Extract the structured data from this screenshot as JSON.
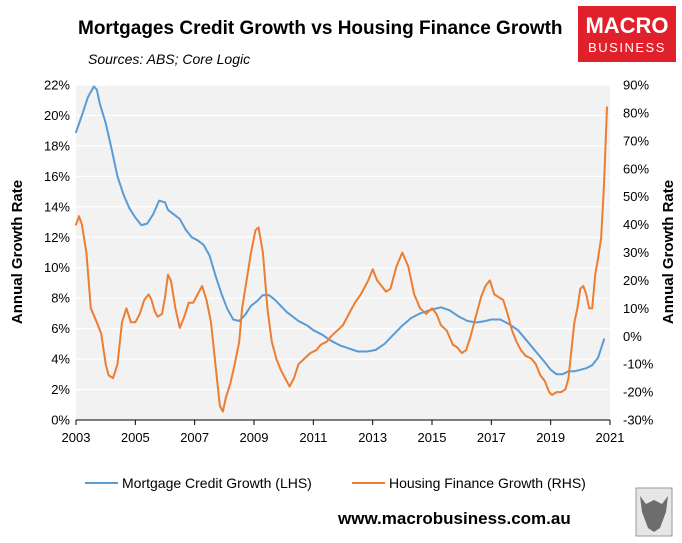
{
  "title": "Mortgages Credit Growth vs Housing Finance Growth",
  "subtitle": "Sources: ABS; Core Logic",
  "logo": {
    "line1": "MACRO",
    "line2": "BUSINESS",
    "color": "#e0202a"
  },
  "footer_url": "www.macrobusiness.com.au",
  "colors": {
    "lhs": "#5b9bd5",
    "rhs": "#ed7d31",
    "plot_bg": "#f2f2f2",
    "grid": "#ffffff"
  },
  "chart_data": {
    "type": "line",
    "x_ticks": [
      "2003",
      "2005",
      "2007",
      "2009",
      "2011",
      "2013",
      "2015",
      "2017",
      "2019",
      "2021"
    ],
    "xlim": [
      2003,
      2021
    ],
    "yleft": {
      "label": "Annual Growth Rate",
      "lim": [
        0,
        22
      ],
      "ticks": [
        "0%",
        "2%",
        "4%",
        "6%",
        "8%",
        "10%",
        "12%",
        "14%",
        "16%",
        "18%",
        "20%",
        "22%"
      ]
    },
    "yright": {
      "label": "Annual Growth Rate",
      "lim": [
        -30,
        90
      ],
      "ticks": [
        "-30%",
        "-20%",
        "-10%",
        "0%",
        "10%",
        "20%",
        "30%",
        "40%",
        "50%",
        "60%",
        "70%",
        "80%",
        "90%"
      ]
    },
    "series": [
      {
        "name": "Mortgage Credit Growth (LHS)",
        "axis": "left",
        "x": [
          2003.0,
          2003.2,
          2003.4,
          2003.6,
          2003.7,
          2003.8,
          2004.0,
          2004.2,
          2004.4,
          2004.6,
          2004.8,
          2005.0,
          2005.2,
          2005.4,
          2005.6,
          2005.8,
          2006.0,
          2006.1,
          2006.3,
          2006.5,
          2006.7,
          2006.9,
          2007.1,
          2007.3,
          2007.5,
          2007.7,
          2007.9,
          2008.1,
          2008.3,
          2008.5,
          2008.7,
          2008.9,
          2009.1,
          2009.3,
          2009.5,
          2009.7,
          2009.9,
          2010.1,
          2010.3,
          2010.5,
          2010.8,
          2011.0,
          2011.3,
          2011.6,
          2011.9,
          2012.2,
          2012.5,
          2012.8,
          2013.1,
          2013.4,
          2013.7,
          2014.0,
          2014.3,
          2014.6,
          2014.9,
          2015.1,
          2015.3,
          2015.6,
          2015.9,
          2016.2,
          2016.5,
          2016.8,
          2017.0,
          2017.3,
          2017.6,
          2017.9,
          2018.2,
          2018.5,
          2018.8,
          2019.0,
          2019.2,
          2019.4,
          2019.6,
          2019.8,
          2020.0,
          2020.2,
          2020.4,
          2020.6,
          2020.8
        ],
        "values": [
          18.9,
          20.0,
          21.2,
          21.9,
          21.7,
          20.8,
          19.5,
          17.8,
          16.0,
          14.8,
          13.9,
          13.3,
          12.8,
          12.9,
          13.5,
          14.4,
          14.3,
          13.8,
          13.5,
          13.2,
          12.5,
          12.0,
          11.8,
          11.5,
          10.8,
          9.5,
          8.3,
          7.3,
          6.6,
          6.5,
          6.9,
          7.5,
          7.8,
          8.2,
          8.2,
          7.9,
          7.5,
          7.1,
          6.8,
          6.5,
          6.2,
          5.9,
          5.6,
          5.2,
          4.9,
          4.7,
          4.5,
          4.5,
          4.6,
          5.0,
          5.6,
          6.2,
          6.7,
          7.0,
          7.2,
          7.3,
          7.4,
          7.2,
          6.8,
          6.5,
          6.4,
          6.5,
          6.6,
          6.6,
          6.3,
          5.9,
          5.2,
          4.5,
          3.8,
          3.3,
          3.0,
          3.0,
          3.2,
          3.2,
          3.3,
          3.4,
          3.6,
          4.1,
          5.3
        ]
      },
      {
        "name": "Housing Finance Growth (RHS)",
        "axis": "right",
        "x": [
          2003.0,
          2003.1,
          2003.2,
          2003.35,
          2003.5,
          2003.7,
          2003.85,
          2004.0,
          2004.1,
          2004.25,
          2004.4,
          2004.55,
          2004.7,
          2004.85,
          2005.0,
          2005.15,
          2005.3,
          2005.45,
          2005.55,
          2005.65,
          2005.75,
          2005.9,
          2006.0,
          2006.1,
          2006.2,
          2006.35,
          2006.5,
          2006.65,
          2006.8,
          2006.95,
          2007.1,
          2007.25,
          2007.4,
          2007.55,
          2007.7,
          2007.85,
          2007.95,
          2008.05,
          2008.2,
          2008.35,
          2008.5,
          2008.6,
          2008.75,
          2008.9,
          2009.05,
          2009.15,
          2009.3,
          2009.45,
          2009.6,
          2009.75,
          2009.9,
          2010.05,
          2010.2,
          2010.35,
          2010.5,
          2010.7,
          2010.9,
          2011.1,
          2011.25,
          2011.45,
          2011.6,
          2011.8,
          2012.0,
          2012.2,
          2012.4,
          2012.6,
          2012.75,
          2012.85,
          2013.0,
          2013.15,
          2013.3,
          2013.45,
          2013.6,
          2013.8,
          2014.0,
          2014.2,
          2014.4,
          2014.6,
          2014.8,
          2015.0,
          2015.15,
          2015.3,
          2015.5,
          2015.7,
          2015.85,
          2016.0,
          2016.15,
          2016.3,
          2016.5,
          2016.65,
          2016.8,
          2016.95,
          2017.1,
          2017.25,
          2017.4,
          2017.55,
          2017.7,
          2017.85,
          2018.0,
          2018.15,
          2018.35,
          2018.5,
          2018.65,
          2018.8,
          2018.95,
          2019.05,
          2019.2,
          2019.35,
          2019.5,
          2019.6,
          2019.7,
          2019.8,
          2019.9,
          2020.0,
          2020.1,
          2020.2,
          2020.3,
          2020.4,
          2020.5,
          2020.6,
          2020.7,
          2020.8,
          2020.9
        ],
        "values": [
          40,
          43,
          40,
          30,
          10,
          5,
          1,
          -10,
          -14,
          -15,
          -10,
          5,
          10,
          5,
          5,
          8,
          13,
          15,
          13,
          9,
          7,
          8,
          14,
          22,
          20,
          10,
          3,
          7,
          12,
          12,
          15,
          18,
          13,
          5,
          -10,
          -25,
          -27,
          -22,
          -17,
          -10,
          -2,
          10,
          20,
          30,
          38,
          39,
          30,
          10,
          -2,
          -8,
          -12,
          -15,
          -18,
          -15,
          -10,
          -8,
          -6,
          -5,
          -3,
          -2,
          0,
          2,
          4,
          8,
          12,
          15,
          18,
          20,
          24,
          20,
          18,
          16,
          17,
          25,
          30,
          25,
          15,
          10,
          8,
          10,
          8,
          4,
          2,
          -3,
          -4,
          -6,
          -5,
          0,
          8,
          14,
          18,
          20,
          15,
          14,
          13,
          8,
          2,
          -2,
          -5,
          -7,
          -8,
          -10,
          -14,
          -16,
          -20,
          -21,
          -20,
          -20,
          -19,
          -15,
          -5,
          5,
          10,
          17,
          18,
          15,
          10,
          10,
          22,
          28,
          35,
          55,
          82
        ]
      }
    ],
    "legend_position": "bottom",
    "grid": true
  }
}
